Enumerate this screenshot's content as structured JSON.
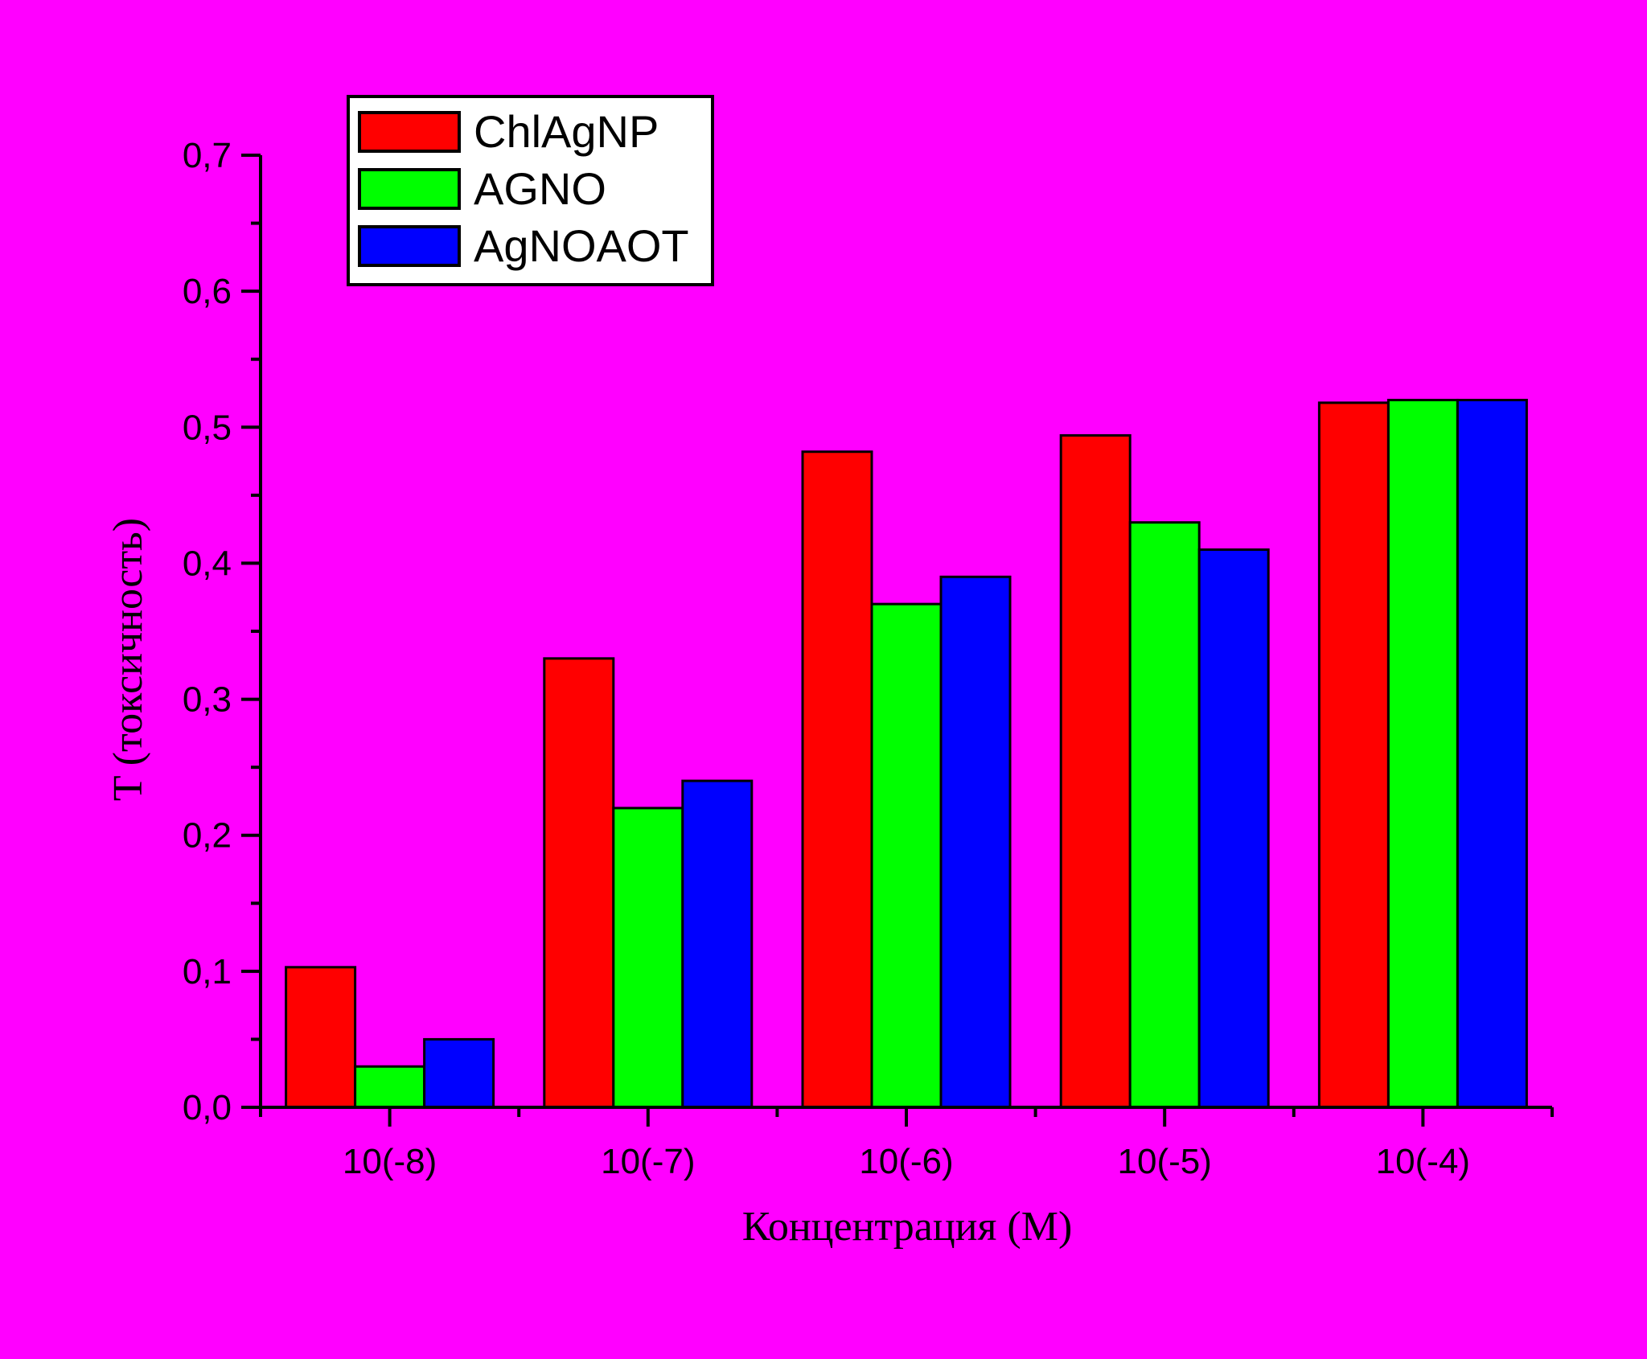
{
  "background_color": "#ff00ff",
  "chart_data": {
    "type": "bar",
    "xlabel": "Концентрация (М)",
    "ylabel": "T (токсичность)",
    "categories": [
      "10(-8)",
      "10(-7)",
      "10(-6)",
      "10(-5)",
      "10(-4)"
    ],
    "series": [
      {
        "name": "ChlAgNP",
        "color": "#ff0000",
        "values": [
          0.103,
          0.33,
          0.482,
          0.494,
          0.518
        ]
      },
      {
        "name": "AGNO",
        "color": "#00ff00",
        "values": [
          0.03,
          0.22,
          0.37,
          0.43,
          0.52
        ]
      },
      {
        "name": "AgNOAOT",
        "color": "#0000ff",
        "values": [
          0.05,
          0.24,
          0.39,
          0.41,
          0.52
        ]
      }
    ],
    "ylim": [
      0,
      0.7
    ],
    "yticks": [
      "0,0",
      "0,1",
      "0,2",
      "0,3",
      "0,4",
      "0,5",
      "0,6",
      "0,7"
    ],
    "grid": false,
    "legend_position": "top-left"
  }
}
